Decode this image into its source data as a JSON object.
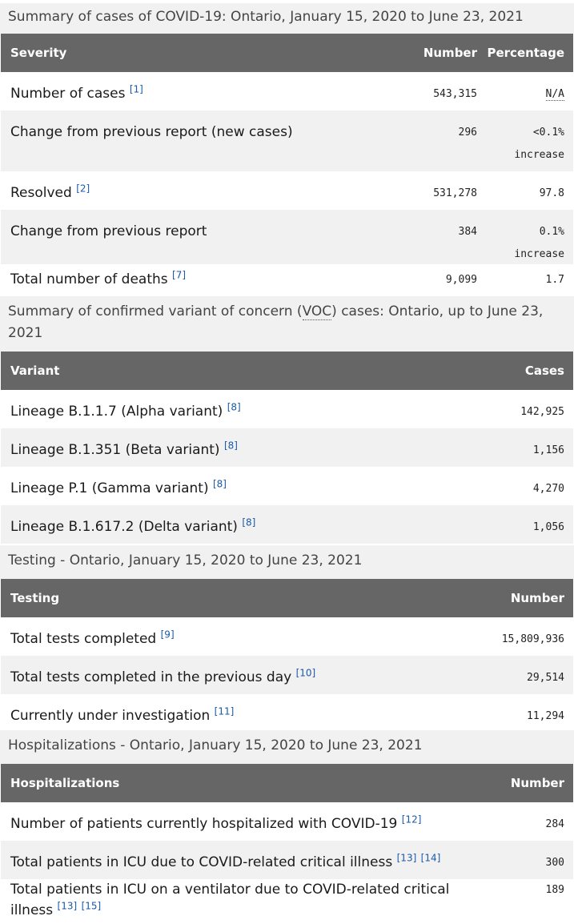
{
  "cases": {
    "caption": "Summary of cases of COVID-19: Ontario, January 15, 2020 to June 23, 2021",
    "headers": {
      "severity": "Severity",
      "number": "Number",
      "percentage": "Percentage"
    },
    "rows": [
      {
        "label": "Number of cases",
        "ref": "[1]",
        "number": "543,315",
        "pct": "N/A",
        "pct2": ""
      },
      {
        "label": "Change from previous report (new cases)",
        "ref": "",
        "number": "296",
        "pct": "<0.1%",
        "pct2": "increase"
      },
      {
        "label": "Resolved",
        "ref": "[2]",
        "number": "531,278",
        "pct": "97.8",
        "pct2": ""
      },
      {
        "label": "Change from previous report",
        "ref": "",
        "number": "384",
        "pct": "0.1%",
        "pct2": "increase"
      },
      {
        "label": "Total number of deaths",
        "ref": "[7]",
        "number": "9,099",
        "pct": "1.7",
        "pct2": ""
      }
    ]
  },
  "variants": {
    "caption_pre": "Summary of confirmed variant of concern (",
    "caption_abbr": "VOC",
    "caption_post": ") cases: Ontario, up to June 23, 2021",
    "headers": {
      "variant": "Variant",
      "cases": "Cases"
    },
    "rows": [
      {
        "label": "Lineage B.1.1.7 (Alpha variant)",
        "ref": "[8]",
        "cases": "142,925"
      },
      {
        "label": "Lineage B.1.351 (Beta variant)",
        "ref": "[8]",
        "cases": "1,156"
      },
      {
        "label": "Lineage P.1 (Gamma variant)",
        "ref": "[8]",
        "cases": "4,270"
      },
      {
        "label": "Lineage B.1.617.2 (Delta variant)",
        "ref": "[8]",
        "cases": "1,056"
      }
    ]
  },
  "testing": {
    "caption": "Testing - Ontario, January 15, 2020 to June 23, 2021",
    "headers": {
      "testing": "Testing",
      "number": "Number"
    },
    "rows": [
      {
        "label": "Total tests completed",
        "ref": "[9]",
        "number": "15,809,936"
      },
      {
        "label": "Total tests completed in the previous day",
        "ref": "[10]",
        "number": "29,514"
      },
      {
        "label": "Currently under investigation",
        "ref": "[11]",
        "number": "11,294"
      }
    ]
  },
  "hospital": {
    "caption": "Hospitalizations - Ontario, January 15, 2020 to June 23, 2021",
    "headers": {
      "hosp": "Hospitalizations",
      "number": "Number"
    },
    "rows": [
      {
        "label": "Number of patients currently hospitalized with COVID-19",
        "ref": "[12]",
        "ref2": "",
        "number": "284"
      },
      {
        "label": "Total patients in ICU due to COVID-related critical illness",
        "ref": "[13]",
        "ref2": "[14]",
        "number": "300"
      },
      {
        "label": "Total patients in ICU on a ventilator due to COVID-related critical illness",
        "ref": "[13]",
        "ref2": "[15]",
        "number": "189"
      }
    ]
  }
}
